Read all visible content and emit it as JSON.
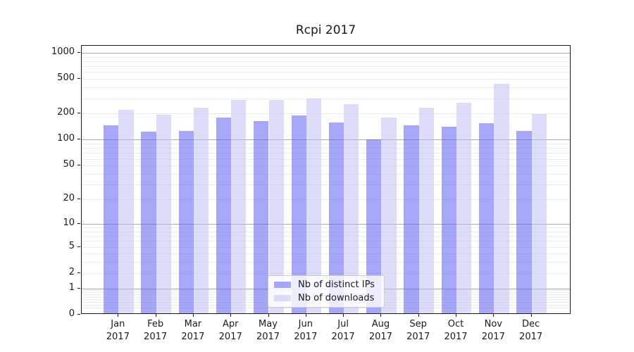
{
  "title": "Rcpi 2017",
  "colors": {
    "spine": "#1a1a1a",
    "text": "#1a1a1a",
    "grid_major": "#a9a9a9",
    "grid_minor": "#ececec",
    "legend_border": "#cccccc"
  },
  "chart_data": {
    "type": "bar",
    "title": "Rcpi 2017",
    "categories": [
      "Jan",
      "Feb",
      "Mar",
      "Apr",
      "May",
      "Jun",
      "Jul",
      "Aug",
      "Sep",
      "Oct",
      "Nov",
      "Dec"
    ],
    "category_year": "2017",
    "series": [
      {
        "name": "Nb of distinct IPs",
        "color": "#5f5ff3",
        "opacity": 0.55,
        "values": [
          141,
          119,
          121,
          175,
          158,
          183,
          153,
          97,
          142,
          137,
          150,
          121
        ]
      },
      {
        "name": "Nb of downloads",
        "color": "#bbbbf5",
        "opacity": 0.5,
        "values": [
          213,
          188,
          225,
          275,
          278,
          288,
          249,
          174,
          225,
          257,
          425,
          190
        ]
      }
    ],
    "xlabel": "",
    "ylabel": "",
    "yscale": "log1p",
    "ylim": [
      0,
      1200
    ],
    "yticks": [
      0,
      1,
      2,
      5,
      10,
      20,
      50,
      100,
      200,
      500,
      1000
    ],
    "grid_major_lines": [
      1,
      10,
      100,
      1000
    ],
    "grid": "both",
    "legend_position": "lower-center-inside"
  }
}
